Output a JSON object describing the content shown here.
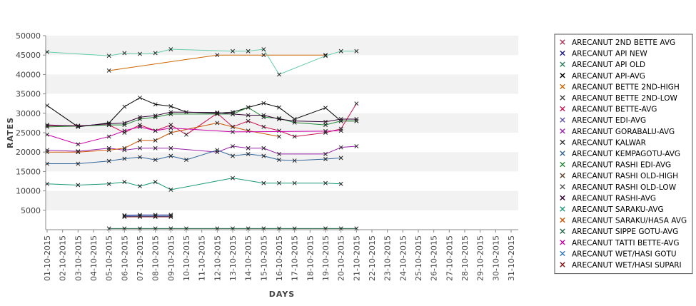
{
  "chart_data": {
    "type": "line",
    "title": "",
    "xlabel": "DAYS",
    "ylabel": "RATES",
    "ylim": [
      0,
      50000
    ],
    "yticks": [
      5000,
      10000,
      15000,
      20000,
      25000,
      30000,
      35000,
      40000,
      45000,
      50000
    ],
    "grid": "alternating horizontal bands",
    "legend": "right",
    "categories": [
      "01-10-2015",
      "02-10-2015",
      "03-10-2015",
      "04-10-2015",
      "05-10-2015",
      "06-10-2015",
      "07-10-2015",
      "08-10-2015",
      "09-10-2015",
      "10-10-2015",
      "11-10-2015",
      "12-10-2015",
      "13-10-2015",
      "14-10-2015",
      "15-10-2015",
      "16-10-2015",
      "17-10-2015",
      "18-10-2015",
      "19-10-2015",
      "20-10-2015",
      "21-10-2015",
      "22-10-2015",
      "23-10-2015",
      "24-10-2015",
      "25-10-2015",
      "26-10-2015",
      "27-10-2015",
      "28-10-2015",
      "29-10-2015",
      "30-10-2015",
      "31-10-2015"
    ],
    "series": [
      {
        "name": "ARECANUT 2ND BETTE AVG",
        "color": "#aa3355",
        "values": [
          null,
          null,
          null,
          null,
          null,
          null,
          null,
          null,
          null,
          null,
          null,
          null,
          null,
          null,
          null,
          null,
          null,
          null,
          null,
          null,
          null,
          null,
          null,
          null,
          null,
          null,
          null,
          null,
          null,
          null,
          null
        ]
      },
      {
        "name": "ARECANUT API NEW",
        "color": "#1a1a88",
        "values": [
          null,
          null,
          null,
          null,
          null,
          3700,
          3800,
          3800,
          3800,
          null,
          null,
          null,
          null,
          null,
          null,
          null,
          null,
          null,
          null,
          null,
          null,
          null,
          null,
          null,
          null,
          null,
          null,
          null,
          null,
          null,
          null
        ]
      },
      {
        "name": "ARECANUT API OLD",
        "color": "#2e7d5b",
        "values": [
          null,
          null,
          null,
          null,
          null,
          null,
          null,
          null,
          null,
          null,
          null,
          null,
          null,
          null,
          null,
          null,
          null,
          null,
          null,
          null,
          null,
          null,
          null,
          null,
          null,
          null,
          null,
          null,
          null,
          null,
          null
        ]
      },
      {
        "name": "ARECANUT API-AVG",
        "color": "#000000",
        "values": [
          32000,
          null,
          26500,
          null,
          27500,
          31700,
          34000,
          32300,
          31800,
          30300,
          null,
          30000,
          30300,
          31500,
          32600,
          31500,
          28500,
          null,
          31400,
          28000,
          28000,
          null,
          null,
          null,
          null,
          null,
          null,
          null,
          null,
          null,
          null
        ]
      },
      {
        "name": "ARECANUT BETTE 2ND-HIGH",
        "color": "#cc6600",
        "values": [
          null,
          null,
          null,
          null,
          41000,
          null,
          null,
          null,
          null,
          null,
          null,
          45000,
          null,
          null,
          45000,
          null,
          null,
          null,
          45000,
          null,
          null,
          null,
          null,
          null,
          null,
          null,
          null,
          null,
          null,
          null,
          null
        ]
      },
      {
        "name": "ARECANUT BETTE 2ND-LOW",
        "color": "#444444",
        "values": [
          null,
          null,
          null,
          null,
          null,
          null,
          null,
          null,
          null,
          null,
          null,
          null,
          null,
          null,
          null,
          null,
          null,
          null,
          null,
          null,
          null,
          null,
          null,
          null,
          null,
          null,
          null,
          null,
          null,
          null,
          null
        ]
      },
      {
        "name": "ARECANUT BETTE-AVG",
        "color": "#cc1155",
        "values": [
          26800,
          null,
          26800,
          null,
          27000,
          25000,
          27000,
          25500,
          27000,
          24500,
          null,
          30000,
          26500,
          28000,
          26500,
          25500,
          24000,
          null,
          25000,
          26000,
          32500,
          null,
          null,
          null,
          null,
          null,
          null,
          null,
          null,
          null,
          null
        ]
      },
      {
        "name": "ARECANUT EDI-AVG",
        "color": "#6655aa",
        "values": [
          null,
          null,
          null,
          null,
          null,
          null,
          null,
          null,
          null,
          null,
          null,
          null,
          null,
          null,
          null,
          null,
          null,
          null,
          null,
          null,
          null,
          null,
          null,
          null,
          null,
          null,
          null,
          null,
          null,
          null,
          null
        ]
      },
      {
        "name": "ARECANUT GORABALU-AVG",
        "color": "#9922aa",
        "values": [
          20500,
          null,
          20200,
          null,
          21000,
          20500,
          21000,
          21000,
          21000,
          null,
          null,
          20000,
          21500,
          21000,
          21000,
          19500,
          null,
          null,
          19500,
          21200,
          21500,
          null,
          null,
          null,
          null,
          null,
          null,
          null,
          null,
          null,
          null
        ]
      },
      {
        "name": "ARECANUT KALWAR",
        "color": "#333333",
        "values": [
          null,
          null,
          null,
          null,
          null,
          null,
          null,
          null,
          null,
          null,
          null,
          null,
          null,
          null,
          null,
          null,
          null,
          null,
          null,
          null,
          null,
          null,
          null,
          null,
          null,
          null,
          null,
          null,
          null,
          null,
          null
        ]
      },
      {
        "name": "ARECANUT KEMPAGOTU-AVG",
        "color": "#336699",
        "values": [
          17000,
          null,
          17000,
          null,
          17700,
          18300,
          18700,
          18000,
          19000,
          18000,
          null,
          20500,
          19000,
          19500,
          19000,
          18000,
          17800,
          null,
          18200,
          18500,
          null,
          null,
          null,
          null,
          null,
          null,
          null,
          null,
          null,
          null,
          null
        ]
      },
      {
        "name": "ARECANUT RASHI EDI-AVG",
        "color": "#228833",
        "values": [
          26500,
          null,
          26700,
          null,
          27000,
          27000,
          28500,
          29000,
          29800,
          null,
          null,
          29800,
          29800,
          31500,
          29000,
          28700,
          27600,
          null,
          27000,
          28000,
          28000,
          null,
          null,
          null,
          null,
          null,
          null,
          null,
          null,
          null,
          null
        ]
      },
      {
        "name": "ARECANUT RASHI OLD-HIGH",
        "color": "#664433",
        "values": [
          null,
          null,
          null,
          null,
          null,
          null,
          null,
          null,
          null,
          null,
          null,
          null,
          null,
          null,
          null,
          null,
          null,
          null,
          null,
          null,
          null,
          null,
          null,
          null,
          null,
          null,
          null,
          null,
          null,
          null,
          null
        ]
      },
      {
        "name": "ARECANUT RASHI OLD-LOW",
        "color": "#555555",
        "values": [
          null,
          null,
          null,
          null,
          null,
          null,
          null,
          null,
          null,
          null,
          null,
          null,
          null,
          null,
          null,
          null,
          null,
          null,
          null,
          null,
          null,
          null,
          null,
          null,
          null,
          null,
          null,
          null,
          null,
          null,
          null
        ]
      },
      {
        "name": "ARECANUT RASHI-AVG",
        "color": "#330033",
        "values": [
          27000,
          null,
          26700,
          null,
          27300,
          27500,
          29000,
          29400,
          30300,
          null,
          null,
          30200,
          29800,
          29500,
          29500,
          28500,
          28000,
          null,
          27800,
          28500,
          28500,
          null,
          null,
          null,
          null,
          null,
          null,
          null,
          null,
          null,
          null
        ]
      },
      {
        "name": "ARECANUT SARAKU-AVG",
        "color": "#1a9977",
        "values": [
          11800,
          null,
          11500,
          null,
          11800,
          12300,
          11200,
          12300,
          10300,
          null,
          null,
          null,
          13300,
          null,
          12000,
          12000,
          12000,
          null,
          12000,
          11800,
          null,
          null,
          null,
          null,
          null,
          null,
          null,
          null,
          null,
          null,
          null
        ]
      },
      {
        "name": "ARECANUT SARAKU/HASA AVG",
        "color": "#cc5500",
        "values": [
          20000,
          null,
          20000,
          null,
          20500,
          21000,
          23000,
          23000,
          25000,
          null,
          null,
          27500,
          26500,
          25500,
          null,
          24000,
          null,
          null,
          null,
          null,
          null,
          null,
          null,
          null,
          null,
          null,
          null,
          null,
          null,
          null,
          null
        ]
      },
      {
        "name": "ARECANUT SIPPE GOTU-AVG",
        "color": "#226644",
        "values": [
          null,
          null,
          null,
          null,
          300,
          300,
          300,
          300,
          300,
          300,
          null,
          300,
          300,
          300,
          300,
          300,
          300,
          null,
          300,
          300,
          300,
          null,
          null,
          null,
          null,
          null,
          null,
          null,
          null,
          null,
          null
        ]
      },
      {
        "name": "ARECANUT TATTI BETTE-AVG",
        "color": "#cc00aa",
        "values": [
          24500,
          null,
          22000,
          null,
          24000,
          25500,
          26500,
          25500,
          26200,
          null,
          null,
          null,
          25200,
          null,
          null,
          null,
          null,
          null,
          25400,
          25500,
          null,
          null,
          null,
          null,
          null,
          null,
          null,
          null,
          null,
          null,
          null
        ]
      },
      {
        "name": "ARECANUT WET/HASI GOTU",
        "color": "#3377bb",
        "values": [
          null,
          null,
          null,
          null,
          null,
          3500,
          3500,
          3500,
          3500,
          null,
          null,
          null,
          null,
          null,
          null,
          null,
          null,
          null,
          null,
          null,
          null,
          null,
          null,
          null,
          null,
          null,
          null,
          null,
          null,
          null,
          null
        ]
      },
      {
        "name": "ARECANUT WET/HASI SUPARI",
        "color": "#881111",
        "values": [
          null,
          null,
          null,
          null,
          null,
          3300,
          3300,
          3300,
          3300,
          null,
          null,
          null,
          null,
          null,
          null,
          null,
          null,
          null,
          null,
          null,
          null,
          null,
          null,
          null,
          null,
          null,
          null,
          null,
          null,
          null,
          null
        ]
      },
      {
        "name": "ARECANUT SARAKU (HIGH)",
        "color": "#66ccaa",
        "hidden_in_legend": true,
        "values": [
          45800,
          null,
          null,
          null,
          44800,
          45500,
          45300,
          45500,
          46500,
          null,
          null,
          null,
          46000,
          46000,
          46500,
          40000,
          null,
          null,
          44800,
          46000,
          46000,
          null,
          null,
          null,
          null,
          null,
          null,
          null,
          null,
          null,
          null
        ]
      }
    ]
  }
}
